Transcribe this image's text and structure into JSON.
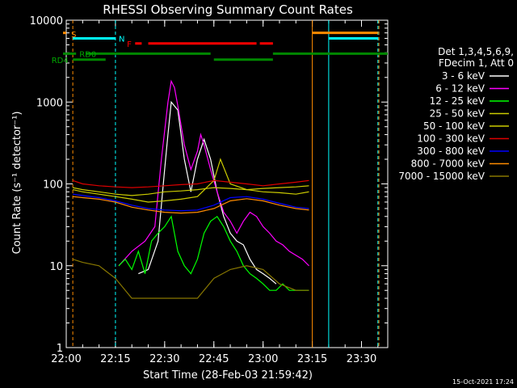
{
  "chart_data": {
    "type": "line",
    "title": "RHESSI Observing Summary Count Rates",
    "xlabel": "Start Time (28-Feb-03 21:59:42)",
    "ylabel": "Count Rate (s⁻¹ detector⁻¹)",
    "yscale": "log",
    "xlim": [
      0,
      98
    ],
    "ylim": [
      1,
      10000
    ],
    "x_ticks": [
      {
        "v": 0,
        "label": "22:00"
      },
      {
        "v": 15,
        "label": "22:15"
      },
      {
        "v": 30,
        "label": "22:30"
      },
      {
        "v": 45,
        "label": "22:45"
      },
      {
        "v": 60,
        "label": "23:00"
      },
      {
        "v": 75,
        "label": "23:15"
      },
      {
        "v": 90,
        "label": "23:30"
      }
    ],
    "y_ticks": [
      {
        "v": 1,
        "label": "1"
      },
      {
        "v": 10,
        "label": "10"
      },
      {
        "v": 100,
        "label": "100"
      },
      {
        "v": 1000,
        "label": "1000"
      },
      {
        "v": 10000,
        "label": "10000"
      }
    ],
    "legend_position": "right",
    "legend_header": [
      "Det 1,3,4,5,6,9,",
      "FDecim 1, Att 0"
    ],
    "series": [
      {
        "name": "3 - 6 keV",
        "color": "#ffffff",
        "x": [
          22,
          25,
          28,
          30,
          31,
          32,
          34,
          36,
          38,
          40,
          42,
          44,
          46,
          48,
          50,
          52,
          54,
          56,
          58,
          60,
          62,
          64
        ],
        "values": [
          8,
          9,
          20,
          150,
          400,
          1000,
          800,
          200,
          80,
          200,
          350,
          200,
          80,
          40,
          25,
          20,
          18,
          12,
          9,
          8,
          7,
          6
        ]
      },
      {
        "name": "6 - 12 keV",
        "color": "#ff00ff",
        "x": [
          16,
          20,
          24,
          27,
          29,
          31,
          32,
          33,
          34,
          36,
          38,
          40,
          41,
          42,
          44,
          46,
          48,
          50,
          52,
          54,
          56,
          58,
          60,
          62,
          64,
          66,
          68,
          72,
          74
        ],
        "values": [
          10,
          15,
          20,
          30,
          200,
          1000,
          1800,
          1500,
          900,
          300,
          150,
          250,
          400,
          300,
          150,
          80,
          45,
          35,
          25,
          35,
          45,
          40,
          30,
          25,
          20,
          18,
          15,
          12,
          10
        ]
      },
      {
        "name": "12 - 25 keV",
        "color": "#00ff00",
        "x": [
          16,
          18,
          20,
          22,
          24,
          26,
          28,
          30,
          32,
          34,
          36,
          38,
          40,
          42,
          44,
          46,
          48,
          50,
          52,
          54,
          56,
          58,
          60,
          62,
          64,
          66,
          68,
          70,
          72,
          74
        ],
        "values": [
          10,
          12,
          9,
          15,
          8,
          20,
          25,
          30,
          40,
          15,
          10,
          8,
          12,
          25,
          35,
          40,
          30,
          20,
          15,
          10,
          8,
          7,
          6,
          5,
          5,
          6,
          5,
          5,
          5,
          5
        ]
      },
      {
        "name": "25 - 50 keV",
        "color": "#cccc00",
        "x": [
          2,
          5,
          10,
          15,
          20,
          25,
          30,
          35,
          40,
          45,
          47,
          50,
          55,
          60,
          65,
          70,
          74
        ],
        "values": [
          85,
          80,
          75,
          70,
          65,
          60,
          62,
          65,
          70,
          110,
          200,
          100,
          85,
          80,
          78,
          75,
          80
        ]
      },
      {
        "name": "50 - 100 keV",
        "color": "#cccc00",
        "x": [
          2,
          5,
          10,
          15,
          20,
          25,
          30,
          35,
          40,
          45,
          50,
          55,
          60,
          65,
          70,
          74
        ],
        "values": [
          90,
          85,
          80,
          75,
          72,
          75,
          80,
          82,
          85,
          90,
          88,
          85,
          88,
          90,
          92,
          95
        ]
      },
      {
        "name": "100 - 300 keV",
        "color": "#dd0000",
        "x": [
          2,
          5,
          10,
          15,
          20,
          25,
          30,
          35,
          40,
          45,
          50,
          55,
          60,
          65,
          70,
          74
        ],
        "values": [
          110,
          100,
          95,
          92,
          90,
          92,
          95,
          98,
          100,
          110,
          105,
          100,
          95,
          100,
          105,
          110
        ]
      },
      {
        "name": "300 - 800 keV",
        "color": "#0000ff",
        "x": [
          2,
          5,
          10,
          15,
          20,
          25,
          30,
          35,
          40,
          45,
          50,
          55,
          60,
          65,
          70,
          74
        ],
        "values": [
          75,
          72,
          68,
          62,
          55,
          50,
          48,
          47,
          48,
          55,
          68,
          70,
          65,
          58,
          52,
          50
        ]
      },
      {
        "name": "800 - 7000 keV",
        "color": "#ff8c00",
        "x": [
          2,
          5,
          10,
          15,
          20,
          25,
          30,
          35,
          40,
          45,
          50,
          55,
          60,
          65,
          70,
          74
        ],
        "values": [
          70,
          68,
          65,
          60,
          52,
          48,
          45,
          44,
          45,
          50,
          62,
          66,
          62,
          55,
          50,
          48
        ]
      },
      {
        "name": "7000 - 15000 keV",
        "color": "#887700",
        "x": [
          2,
          5,
          10,
          15,
          20,
          25,
          30,
          35,
          40,
          45,
          50,
          55,
          60,
          65,
          70,
          74
        ],
        "values": [
          12,
          11,
          10,
          7,
          4,
          4,
          4,
          4,
          4,
          7,
          9,
          10,
          9,
          6,
          5,
          5
        ]
      }
    ],
    "annotations": [
      {
        "label": "S",
        "color": "#ff8c00",
        "x": 1.5,
        "y": 6800
      },
      {
        "label": "N",
        "color": "#00ffff",
        "x": 16,
        "y": 6000
      },
      {
        "label": "F",
        "color": "#ff0000",
        "x": 18.5,
        "y": 5200
      },
      {
        "label": "RD0",
        "color": "#00aa00",
        "x": 4,
        "y": 3900
      },
      {
        "label": "RD4",
        "color": "#00aa00",
        "x": -4.5,
        "y": 3300
      }
    ],
    "state_bars": [
      {
        "name": "S",
        "color": "#ff8c00",
        "y": 7000,
        "segments": [
          [
            -1,
            0
          ],
          [
            75,
            95
          ]
        ]
      },
      {
        "name": "N",
        "color": "#00ffff",
        "y": 6000,
        "segments": [
          [
            2,
            15
          ],
          [
            80,
            95
          ]
        ]
      },
      {
        "name": "F",
        "color": "#ff0000",
        "y": 5200,
        "segments": [
          [
            21,
            23
          ],
          [
            25,
            58
          ],
          [
            59,
            63
          ]
        ]
      },
      {
        "name": "RD0",
        "color": "#008800",
        "y": 3900,
        "segments": [
          [
            -1,
            3
          ],
          [
            6,
            44
          ],
          [
            63,
            98
          ]
        ]
      },
      {
        "name": "RD4",
        "color": "#008800",
        "y": 3300,
        "segments": [
          [
            2,
            12
          ],
          [
            45,
            63
          ]
        ]
      }
    ],
    "vlines": [
      {
        "x": 2,
        "color": "#ff8c00",
        "dashed": true
      },
      {
        "x": 15,
        "color": "#00ffff",
        "dashed": true
      },
      {
        "x": 75,
        "color": "#ff8c00",
        "dashed": false
      },
      {
        "x": 80,
        "color": "#00ffff",
        "dashed": false
      },
      {
        "x": 95,
        "color": "#00ffff",
        "dashed": true
      },
      {
        "x": 95.3,
        "color": "#ff8c00",
        "dashed": true
      }
    ]
  },
  "footer": {
    "date": "15-Oct-2021 17:24"
  }
}
